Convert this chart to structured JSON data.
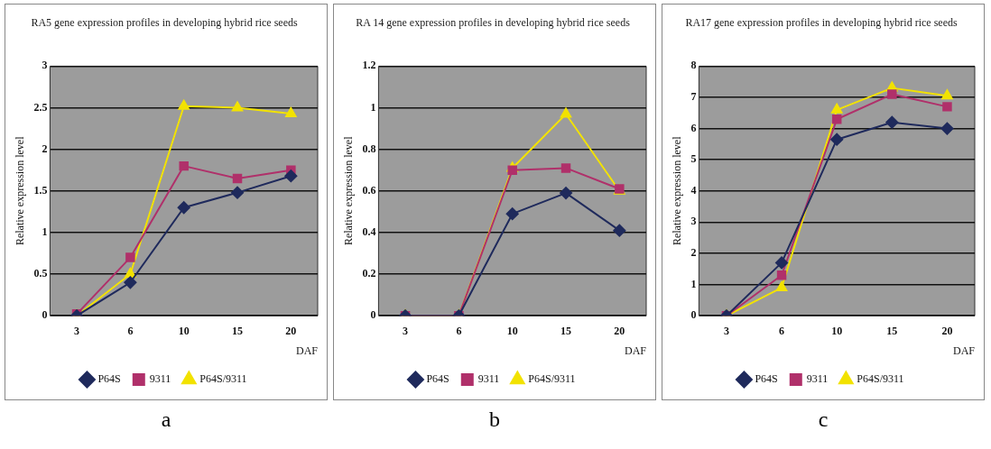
{
  "chart_data": [
    {
      "type": "line",
      "title": "RA5 gene expression profiles in developing hybrid rice seeds",
      "xlabel": "DAF",
      "ylabel": "Relative expression level",
      "categories": [
        "3",
        "6",
        "10",
        "15",
        "20"
      ],
      "ylim": [
        0,
        3
      ],
      "yticks": [
        0,
        0.5,
        1,
        1.5,
        2,
        2.5,
        3
      ],
      "grid": "y",
      "legend": "bottom",
      "annotations": [
        "a"
      ],
      "series": [
        {
          "name": "P64S",
          "color": "#1f2a5c",
          "marker": "diamond",
          "values": [
            0,
            0.4,
            1.3,
            1.48,
            1.68
          ]
        },
        {
          "name": "9311",
          "color": "#b0306a",
          "marker": "square",
          "values": [
            0.02,
            0.7,
            1.8,
            1.65,
            1.75
          ]
        },
        {
          "name": "P64S/9311",
          "color": "#f2e200",
          "marker": "triangle",
          "values": [
            0,
            0.5,
            2.52,
            2.5,
            2.43
          ]
        }
      ]
    },
    {
      "type": "line",
      "title": "RA 14 gene expression profiles in developing hybrid rice seeds",
      "xlabel": "DAF",
      "ylabel": "Relative expression level",
      "categories": [
        "3",
        "6",
        "10",
        "15",
        "20"
      ],
      "ylim": [
        0,
        1.2
      ],
      "yticks": [
        0,
        0.2,
        0.4,
        0.6,
        0.8,
        1,
        1.2
      ],
      "grid": "y",
      "legend": "bottom",
      "annotations": [
        "b"
      ],
      "series": [
        {
          "name": "P64S",
          "color": "#1f2a5c",
          "marker": "diamond",
          "values": [
            0,
            0,
            0.49,
            0.59,
            0.41
          ]
        },
        {
          "name": "9311",
          "color": "#b0306a",
          "marker": "square",
          "values": [
            0,
            0,
            0.7,
            0.71,
            0.61
          ]
        },
        {
          "name": "P64S/9311",
          "color": "#f2e200",
          "marker": "triangle",
          "values": [
            0,
            0,
            0.71,
            0.97,
            0.6
          ]
        }
      ]
    },
    {
      "type": "line",
      "title": "RA17 gene expression profiles in developing hybrid rice seeds",
      "xlabel": "DAF",
      "ylabel": "Relative expression level",
      "categories": [
        "3",
        "6",
        "10",
        "15",
        "20"
      ],
      "ylim": [
        0,
        8
      ],
      "yticks": [
        0,
        1,
        2,
        3,
        4,
        5,
        6,
        7,
        8
      ],
      "grid": "y",
      "legend": "bottom",
      "annotations": [
        "c"
      ],
      "series": [
        {
          "name": "P64S",
          "color": "#1f2a5c",
          "marker": "diamond",
          "values": [
            0,
            1.7,
            5.65,
            6.2,
            6.0
          ]
        },
        {
          "name": "9311",
          "color": "#b0306a",
          "marker": "square",
          "values": [
            0,
            1.3,
            6.3,
            7.1,
            6.7
          ]
        },
        {
          "name": "P64S/9311",
          "color": "#f2e200",
          "marker": "triangle",
          "values": [
            0,
            0.9,
            6.6,
            7.3,
            7.05
          ]
        }
      ]
    }
  ]
}
